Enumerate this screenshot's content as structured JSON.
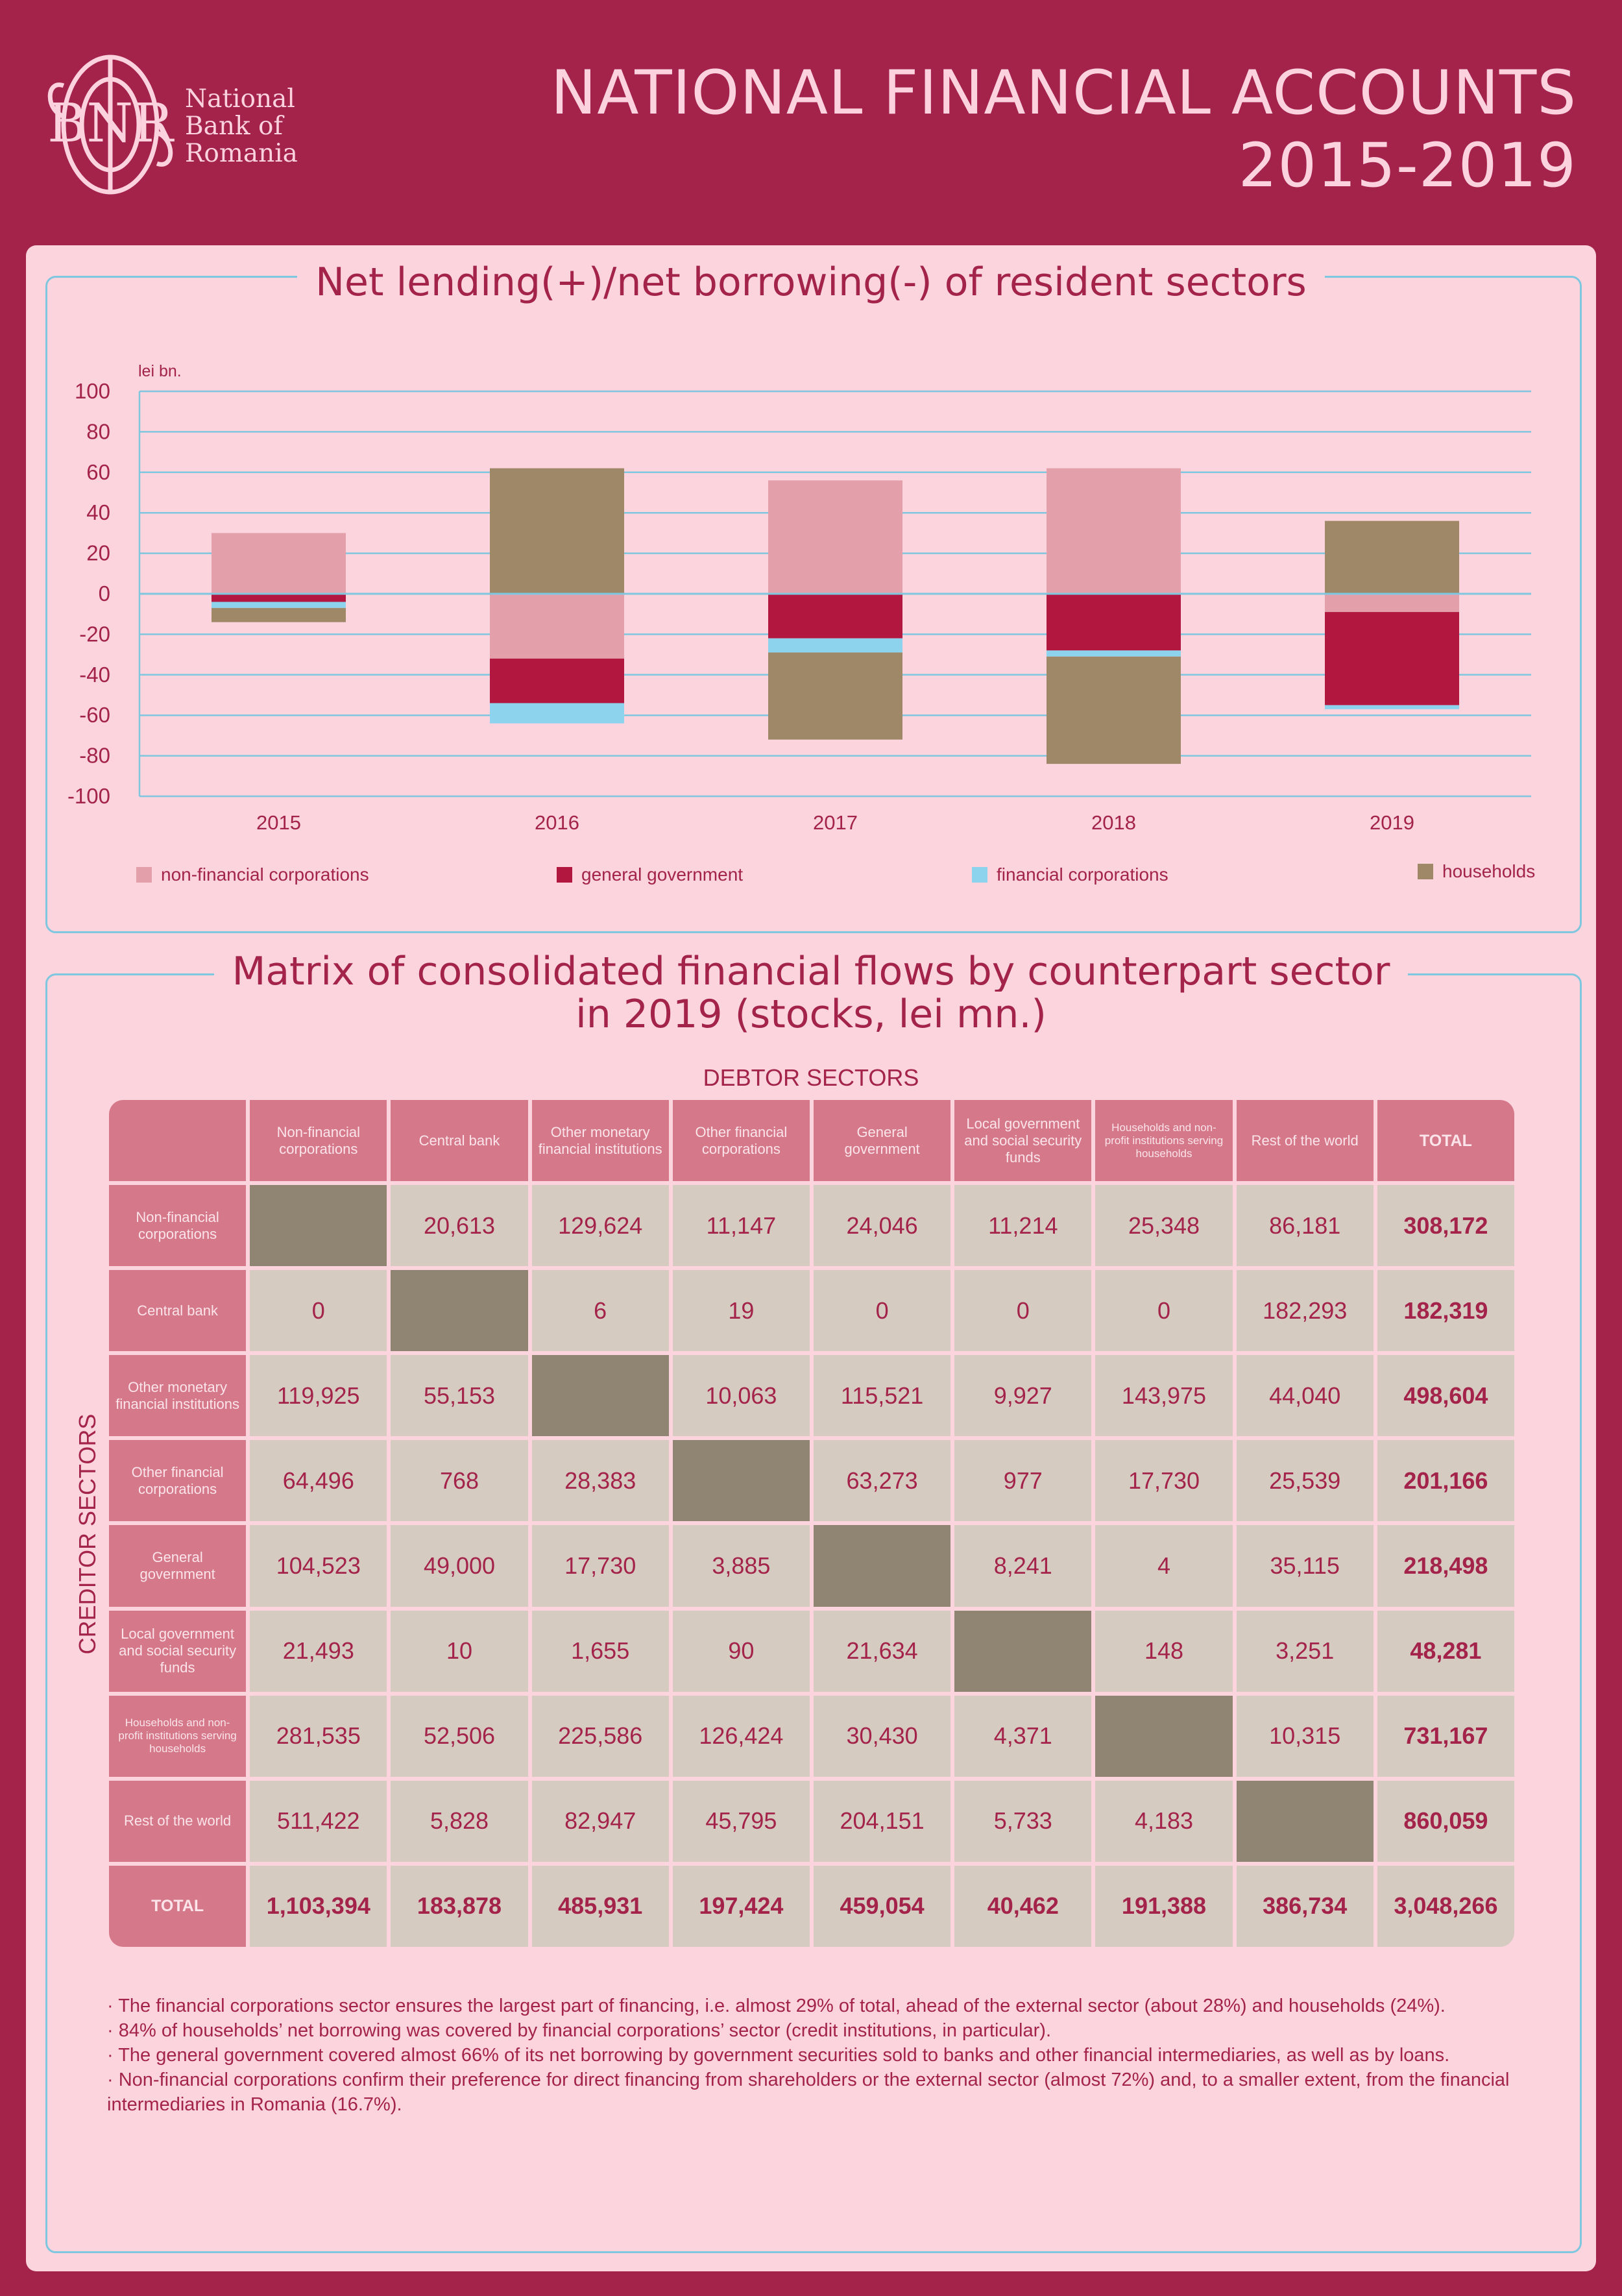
{
  "header": {
    "logo_monogram": "BNR",
    "logo_lines": [
      "National",
      "Bank of",
      "Romania"
    ],
    "title_line1": "NATIONAL FINANCIAL ACCOUNTS",
    "title_line2": "2015-2019"
  },
  "colors": {
    "background": "#a3234a",
    "panel": "#fbd4de",
    "frame": "#7fc6df",
    "non_financial_corporations": "#e3a0aa",
    "general_government": "#b1173f",
    "financial_corporations": "#8dd3ee",
    "households": "#9e8868"
  },
  "chart_data": {
    "type": "bar",
    "stacked": true,
    "title": "Net lending(+)/net borrowing(-) of resident sectors",
    "ylabel": "lei bn.",
    "ylim": [
      -100,
      100
    ],
    "yticks": [
      100,
      80,
      60,
      40,
      20,
      0,
      -20,
      -40,
      -60,
      -80,
      -100
    ],
    "grid": true,
    "legend_position": "bottom",
    "categories": [
      "2015",
      "2016",
      "2017",
      "2018",
      "2019"
    ],
    "series": [
      {
        "name": "non-financial corporations",
        "color": "#e3a0aa",
        "values": [
          30,
          -32,
          56,
          62,
          -9
        ]
      },
      {
        "name": "general government",
        "color": "#b1173f",
        "values": [
          -4,
          -22,
          -22,
          -28,
          -46
        ]
      },
      {
        "name": "financial corporations",
        "color": "#8dd3ee",
        "values": [
          -3,
          -10,
          -7,
          -3,
          -2
        ]
      },
      {
        "name": "households",
        "color": "#9e8868",
        "values": [
          -7,
          62,
          -43,
          -53,
          36
        ]
      }
    ]
  },
  "matrix": {
    "title_line1": "Matrix of consolidated financial flows by counterpart sector",
    "title_line2": "in 2019 (stocks, lei mn.)",
    "debtor_label": "DEBTOR SECTORS",
    "creditor_label": "CREDITOR SECTORS",
    "columns": [
      "Non-financial corporations",
      "Central bank",
      "Other monetary financial institutions",
      "Other financial corporations",
      "General government",
      "Local government and social security funds",
      "Households and non-profit institutions serving households",
      "Rest of the world",
      "TOTAL"
    ],
    "rows": [
      {
        "label": "Non-financial corporations",
        "values": [
          "",
          "20,613",
          "129,624",
          "11,147",
          "24,046",
          "11,214",
          "25,348",
          "86,181",
          "308,172"
        ]
      },
      {
        "label": "Central bank",
        "values": [
          "0",
          "",
          "6",
          "19",
          "0",
          "0",
          "0",
          "182,293",
          "182,319"
        ]
      },
      {
        "label": "Other monetary financial institutions",
        "values": [
          "119,925",
          "55,153",
          "",
          "10,063",
          "115,521",
          "9,927",
          "143,975",
          "44,040",
          "498,604"
        ]
      },
      {
        "label": "Other financial corporations",
        "values": [
          "64,496",
          "768",
          "28,383",
          "",
          "63,273",
          "977",
          "17,730",
          "25,539",
          "201,166"
        ]
      },
      {
        "label": "General government",
        "values": [
          "104,523",
          "49,000",
          "17,730",
          "3,885",
          "",
          "8,241",
          "4",
          "35,115",
          "218,498"
        ]
      },
      {
        "label": "Local government and social security funds",
        "values": [
          "21,493",
          "10",
          "1,655",
          "90",
          "21,634",
          "",
          "148",
          "3,251",
          "48,281"
        ]
      },
      {
        "label": "Households and non-profit institutions serving households",
        "values": [
          "281,535",
          "52,506",
          "225,586",
          "126,424",
          "30,430",
          "4,371",
          "",
          "10,315",
          "731,167"
        ]
      },
      {
        "label": "Rest of the world",
        "values": [
          "511,422",
          "5,828",
          "82,947",
          "45,795",
          "204,151",
          "5,733",
          "4,183",
          "",
          "860,059"
        ]
      },
      {
        "label": "TOTAL",
        "values": [
          "1,103,394",
          "183,878",
          "485,931",
          "197,424",
          "459,054",
          "40,462",
          "191,388",
          "386,734",
          "3,048,266"
        ]
      }
    ]
  },
  "notes": [
    "· The financial corporations sector ensures the largest part of financing, i.e. almost 29% of total, ahead of the external sector (about 28%) and households (24%).",
    "· 84% of households’ net borrowing was covered by financial corporations’ sector (credit institutions, in particular).",
    "· The general government covered almost 66% of its net borrowing by government securities sold to banks and other financial intermediaries, as well as by loans.",
    "· Non-financial corporations confirm their preference for direct financing from shareholders or the external sector (almost 72%) and, to a smaller extent, from the financial intermediaries in Romania (16.7%)."
  ]
}
